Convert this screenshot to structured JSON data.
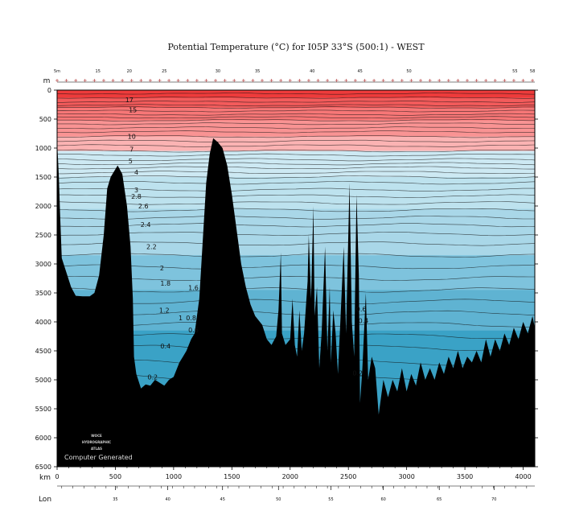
{
  "chart_data": {
    "type": "heatmap",
    "title": "Potential Temperature (°C) for I05P 33°S (500:1) - WEST",
    "depth_axis": {
      "label": "m",
      "range": [
        0,
        6500
      ],
      "ticks": [
        0,
        500,
        1000,
        1500,
        2000,
        2500,
        3000,
        3500,
        4000,
        4500,
        5000,
        5500,
        6000,
        6500
      ]
    },
    "distance_axis": {
      "label": "km",
      "range": [
        0,
        4100
      ],
      "ticks": [
        0,
        500,
        1000,
        1500,
        2000,
        2500,
        3000,
        3500,
        4000
      ]
    },
    "longitude_axis": {
      "label": "Lon",
      "ticks": [
        {
          "km": 500,
          "label": "35"
        },
        {
          "km": 950,
          "label": "40"
        },
        {
          "km": 1420,
          "label": "45"
        },
        {
          "km": 1900,
          "label": "50"
        },
        {
          "km": 2350,
          "label": "55"
        },
        {
          "km": 2800,
          "label": "60"
        },
        {
          "km": 3280,
          "label": "65"
        },
        {
          "km": 3750,
          "label": "70"
        }
      ]
    },
    "stations": [
      {
        "km": 0,
        "label": "5m"
      },
      {
        "km": 350,
        "label": "15"
      },
      {
        "km": 620,
        "label": "20"
      },
      {
        "km": 920,
        "label": "25"
      },
      {
        "km": 1380,
        "label": "30"
      },
      {
        "km": 1720,
        "label": "35"
      },
      {
        "km": 2190,
        "label": "40"
      },
      {
        "km": 2600,
        "label": "45"
      },
      {
        "km": 3020,
        "label": "50"
      },
      {
        "km": 3930,
        "label": "55"
      },
      {
        "km": 4080,
        "label": "58"
      }
    ],
    "contours": [
      {
        "value": "17",
        "depth": 170,
        "km": 620
      },
      {
        "value": "15",
        "depth": 340,
        "km": 650
      },
      {
        "value": "10",
        "depth": 800,
        "km": 640
      },
      {
        "value": "7",
        "depth": 1020,
        "km": 640
      },
      {
        "value": "5",
        "depth": 1220,
        "km": 630
      },
      {
        "value": "4",
        "depth": 1420,
        "km": 680
      },
      {
        "value": "3",
        "depth": 1720,
        "km": 680
      },
      {
        "value": "2.8",
        "depth": 1830,
        "km": 680
      },
      {
        "value": "2.6",
        "depth": 2000,
        "km": 740
      },
      {
        "value": "2.4",
        "depth": 2320,
        "km": 760
      },
      {
        "value": "2.2",
        "depth": 2700,
        "km": 810
      },
      {
        "value": "2",
        "depth": 3070,
        "km": 900
      },
      {
        "value": "1.8",
        "depth": 3330,
        "km": 930
      },
      {
        "value": "1.6",
        "depth": 3410,
        "km": 1170
      },
      {
        "value": "1.2",
        "depth": 3800,
        "km": 920
      },
      {
        "value": "1",
        "depth": 3930,
        "km": 1060
      },
      {
        "value": "0.8",
        "depth": 3930,
        "km": 1150
      },
      {
        "value": "0.6",
        "depth": 4140,
        "km": 1170
      },
      {
        "value": "0.4",
        "depth": 4420,
        "km": 930
      },
      {
        "value": "0.2",
        "depth": 4950,
        "km": 820
      },
      {
        "value": "0.6",
        "depth": 3780,
        "km": 2610
      },
      {
        "value": "0.4",
        "depth": 3980,
        "km": 2630
      },
      {
        "value": "0.2",
        "depth": 4880,
        "km": 2580
      }
    ],
    "color_bands": [
      {
        "top": 0,
        "bottom": 130,
        "color": "#ee3b3b"
      },
      {
        "top": 130,
        "bottom": 300,
        "color": "#f35b5b"
      },
      {
        "top": 300,
        "bottom": 520,
        "color": "#f77777"
      },
      {
        "top": 520,
        "bottom": 800,
        "color": "#f99393"
      },
      {
        "top": 800,
        "bottom": 1050,
        "color": "#fbb3b3"
      },
      {
        "top": 1050,
        "bottom": 1500,
        "color": "#cde9f3"
      },
      {
        "top": 1500,
        "bottom": 2050,
        "color": "#bde2ee"
      },
      {
        "top": 2050,
        "bottom": 2850,
        "color": "#a9d7e8"
      },
      {
        "top": 2850,
        "bottom": 3450,
        "color": "#7ec3dd"
      },
      {
        "top": 3450,
        "bottom": 4150,
        "color": "#5fb3d2"
      },
      {
        "top": 4150,
        "bottom": 6500,
        "color": "#3aa2c6"
      }
    ],
    "bathymetry": [
      [
        0,
        870
      ],
      [
        15,
        1500
      ],
      [
        25,
        2100
      ],
      [
        40,
        2900
      ],
      [
        80,
        3150
      ],
      [
        120,
        3400
      ],
      [
        160,
        3550
      ],
      [
        220,
        3560
      ],
      [
        280,
        3560
      ],
      [
        320,
        3500
      ],
      [
        360,
        3200
      ],
      [
        400,
        2500
      ],
      [
        430,
        1700
      ],
      [
        460,
        1500
      ],
      [
        490,
        1400
      ],
      [
        520,
        1300
      ],
      [
        560,
        1450
      ],
      [
        600,
        2000
      ],
      [
        630,
        2700
      ],
      [
        650,
        3600
      ],
      [
        660,
        4600
      ],
      [
        680,
        4900
      ],
      [
        720,
        5150
      ],
      [
        760,
        5080
      ],
      [
        800,
        5100
      ],
      [
        840,
        5000
      ],
      [
        880,
        5050
      ],
      [
        920,
        5100
      ],
      [
        960,
        5000
      ],
      [
        1000,
        4950
      ],
      [
        1050,
        4700
      ],
      [
        1080,
        4600
      ],
      [
        1110,
        4500
      ],
      [
        1150,
        4300
      ],
      [
        1180,
        4200
      ],
      [
        1220,
        3600
      ],
      [
        1250,
        2600
      ],
      [
        1280,
        1600
      ],
      [
        1310,
        1100
      ],
      [
        1340,
        830
      ],
      [
        1380,
        900
      ],
      [
        1420,
        1000
      ],
      [
        1460,
        1300
      ],
      [
        1500,
        1800
      ],
      [
        1540,
        2400
      ],
      [
        1580,
        3000
      ],
      [
        1620,
        3400
      ],
      [
        1660,
        3700
      ],
      [
        1700,
        3900
      ],
      [
        1760,
        4050
      ],
      [
        1800,
        4300
      ],
      [
        1840,
        4400
      ],
      [
        1880,
        4250
      ],
      [
        1900,
        3800
      ],
      [
        1920,
        2800
      ],
      [
        1930,
        4200
      ],
      [
        1960,
        4400
      ],
      [
        2000,
        4300
      ],
      [
        2020,
        3600
      ],
      [
        2040,
        4400
      ],
      [
        2060,
        4600
      ],
      [
        2080,
        3800
      ],
      [
        2100,
        4500
      ],
      [
        2120,
        4200
      ],
      [
        2150,
        3300
      ],
      [
        2160,
        2500
      ],
      [
        2180,
        3600
      ],
      [
        2200,
        2000
      ],
      [
        2210,
        3900
      ],
      [
        2230,
        3400
      ],
      [
        2250,
        4800
      ],
      [
        2270,
        4200
      ],
      [
        2290,
        3200
      ],
      [
        2300,
        2700
      ],
      [
        2320,
        4500
      ],
      [
        2340,
        3400
      ],
      [
        2350,
        4700
      ],
      [
        2370,
        3800
      ],
      [
        2390,
        4200
      ],
      [
        2410,
        4900
      ],
      [
        2440,
        3600
      ],
      [
        2460,
        2700
      ],
      [
        2480,
        4200
      ],
      [
        2510,
        1600
      ],
      [
        2530,
        4000
      ],
      [
        2550,
        4600
      ],
      [
        2570,
        1800
      ],
      [
        2590,
        3200
      ],
      [
        2600,
        5400
      ],
      [
        2620,
        4800
      ],
      [
        2650,
        3500
      ],
      [
        2670,
        5000
      ],
      [
        2700,
        4600
      ],
      [
        2730,
        4800
      ],
      [
        2760,
        5600
      ],
      [
        2800,
        5000
      ],
      [
        2840,
        5300
      ],
      [
        2880,
        5000
      ],
      [
        2920,
        5200
      ],
      [
        2960,
        4800
      ],
      [
        3000,
        5200
      ],
      [
        3040,
        4900
      ],
      [
        3080,
        5100
      ],
      [
        3120,
        4700
      ],
      [
        3160,
        5000
      ],
      [
        3200,
        4800
      ],
      [
        3240,
        5000
      ],
      [
        3280,
        4700
      ],
      [
        3320,
        4900
      ],
      [
        3360,
        4600
      ],
      [
        3400,
        4800
      ],
      [
        3440,
        4500
      ],
      [
        3480,
        4800
      ],
      [
        3520,
        4600
      ],
      [
        3560,
        4700
      ],
      [
        3600,
        4500
      ],
      [
        3640,
        4700
      ],
      [
        3680,
        4300
      ],
      [
        3720,
        4600
      ],
      [
        3760,
        4300
      ],
      [
        3800,
        4500
      ],
      [
        3840,
        4200
      ],
      [
        3880,
        4400
      ],
      [
        3920,
        4100
      ],
      [
        3960,
        4300
      ],
      [
        4000,
        4000
      ],
      [
        4040,
        4200
      ],
      [
        4080,
        3900
      ],
      [
        4100,
        4100
      ]
    ]
  },
  "watermark": {
    "line1": "WOCE",
    "line2": "HYDROGRAPHIC",
    "line3": "ATLAS"
  },
  "credit": "Computer Generated",
  "colors": {
    "seafloor": "#000000",
    "contour_line": "#111111"
  }
}
